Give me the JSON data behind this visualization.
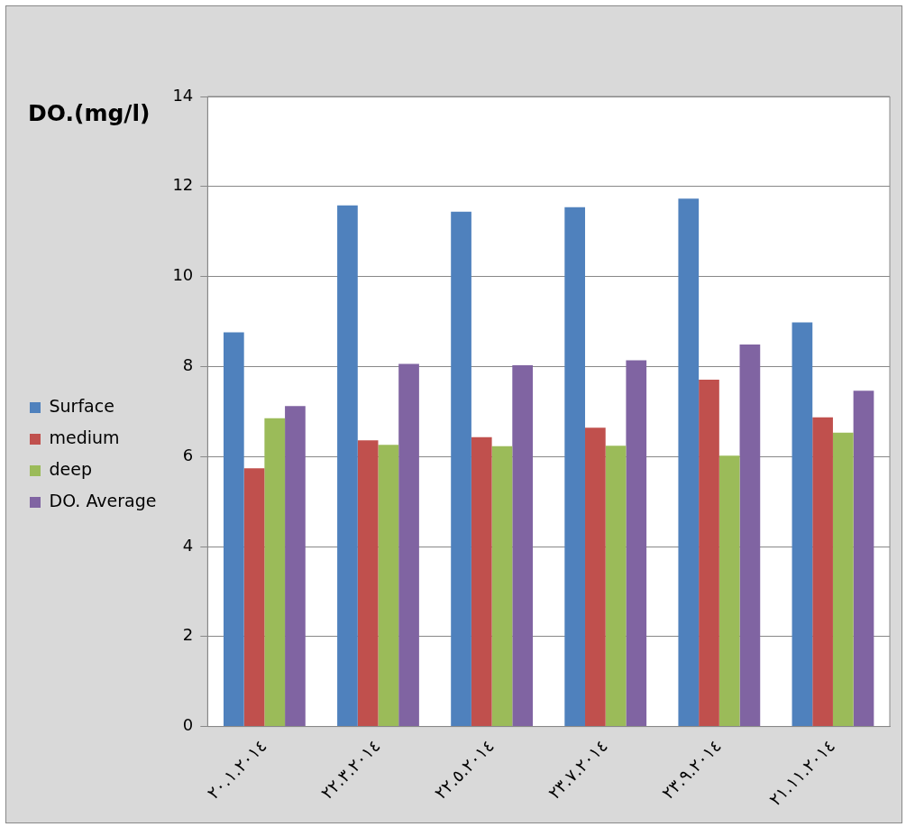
{
  "chart_data": {
    "type": "bar",
    "ylabel": "DO.(mg/l)",
    "categories": [
      "٢٠.١.٢٠١٤",
      "٢٢.٣.٢٠١٤",
      "٢٢.٥.٢٠١٤",
      "٢٣.٧.٢٠١٤",
      "٢٣.٩.٢٠١٤",
      "٢١.١١.٢٠١٤"
    ],
    "series": [
      {
        "name": "Surface",
        "color": "#4f81bd",
        "values": [
          8.76,
          11.58,
          11.44,
          11.54,
          11.73,
          8.98
        ]
      },
      {
        "name": "medium",
        "color": "#c0504d",
        "values": [
          5.74,
          6.36,
          6.43,
          6.64,
          7.71,
          6.87
        ]
      },
      {
        "name": "deep",
        "color": "#9bbb59",
        "values": [
          6.85,
          6.26,
          6.23,
          6.24,
          6.02,
          6.53
        ]
      },
      {
        "name": "DO. Average",
        "color": "#8064a2",
        "values": [
          7.12,
          8.06,
          8.03,
          8.14,
          8.49,
          7.46
        ]
      }
    ],
    "ylim": [
      0,
      14
    ],
    "yticks": [
      0,
      2,
      4,
      6,
      8,
      10,
      12,
      14
    ],
    "grid": "y",
    "legend": "left"
  }
}
